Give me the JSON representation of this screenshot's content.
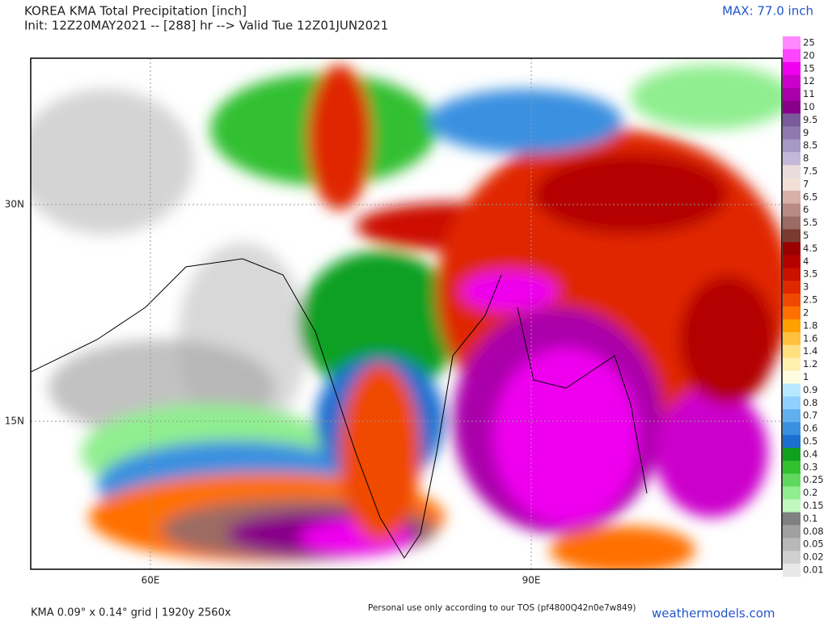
{
  "header": {
    "title": "KOREA KMA Total Precipitation [inch]",
    "subtitle": "Init: 12Z20MAY2021 -- [288] hr --> Valid Tue 12Z01JUN2021",
    "max": "MAX: 77.0 inch"
  },
  "axes": {
    "lat": [
      "30N",
      "15N"
    ],
    "lon": [
      "60E",
      "90E"
    ]
  },
  "legend": {
    "items": [
      {
        "label": "25",
        "color": "#ff88ff"
      },
      {
        "label": "20",
        "color": "#ff44ff"
      },
      {
        "label": "15",
        "color": "#ee00ee"
      },
      {
        "label": "12",
        "color": "#cc00cc"
      },
      {
        "label": "11",
        "color": "#aa00aa"
      },
      {
        "label": "10",
        "color": "#880088"
      },
      {
        "label": "9.5",
        "color": "#7a5a9a"
      },
      {
        "label": "9",
        "color": "#8f7ab0"
      },
      {
        "label": "8.5",
        "color": "#a898c4"
      },
      {
        "label": "8",
        "color": "#c4b8d8"
      },
      {
        "label": "7.5",
        "color": "#e8dcdc"
      },
      {
        "label": "7",
        "color": "#f0e0d8"
      },
      {
        "label": "6.5",
        "color": "#d8b0a8"
      },
      {
        "label": "6",
        "color": "#b88c84"
      },
      {
        "label": "5.5",
        "color": "#9c6c64"
      },
      {
        "label": "5",
        "color": "#7a3a30"
      },
      {
        "label": "4.5",
        "color": "#9a0000"
      },
      {
        "label": "4",
        "color": "#b40000"
      },
      {
        "label": "3.5",
        "color": "#cc1000"
      },
      {
        "label": "3",
        "color": "#e02800"
      },
      {
        "label": "2.5",
        "color": "#f04800"
      },
      {
        "label": "2",
        "color": "#ff7000"
      },
      {
        "label": "1.8",
        "color": "#ffa000"
      },
      {
        "label": "1.6",
        "color": "#ffc040"
      },
      {
        "label": "1.4",
        "color": "#ffe080"
      },
      {
        "label": "1.2",
        "color": "#fff0b0"
      },
      {
        "label": "1",
        "color": "#fffde0"
      },
      {
        "label": "0.9",
        "color": "#b8e8ff"
      },
      {
        "label": "0.8",
        "color": "#90d0ff"
      },
      {
        "label": "0.7",
        "color": "#60b0f0"
      },
      {
        "label": "0.6",
        "color": "#3a90e0"
      },
      {
        "label": "0.5",
        "color": "#1a70d0"
      },
      {
        "label": "0.4",
        "color": "#10a020"
      },
      {
        "label": "0.3",
        "color": "#30c030"
      },
      {
        "label": "0.25",
        "color": "#60d860"
      },
      {
        "label": "0.2",
        "color": "#90ee90"
      },
      {
        "label": "0.15",
        "color": "#c0f8c0"
      },
      {
        "label": "0.1",
        "color": "#808080"
      },
      {
        "label": "0.08",
        "color": "#a0a0a0"
      },
      {
        "label": "0.05",
        "color": "#b8b8b8"
      },
      {
        "label": "0.02",
        "color": "#d0d0d0"
      },
      {
        "label": "0.01",
        "color": "#e8e8e8"
      }
    ]
  },
  "footer": {
    "grid": "KMA 0.09° x 0.14° grid | 1920y 2560x",
    "notice": "Personal use only according to our TOS (pf4800Q42n0e7w849)",
    "site": "weathermodels.com"
  }
}
